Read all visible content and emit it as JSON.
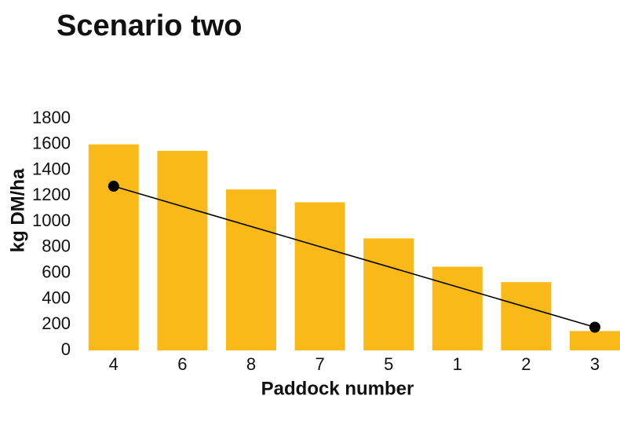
{
  "chart_data": {
    "type": "bar",
    "title": "Scenario two",
    "x_label": "Paddock number",
    "y_label": "kg DM/ha",
    "categories": [
      "4",
      "6",
      "8",
      "7",
      "5",
      "1",
      "2",
      "3"
    ],
    "values": [
      1600,
      1550,
      1250,
      1150,
      870,
      650,
      530,
      150
    ],
    "color": "#f9b918",
    "ylim": [
      0,
      1800
    ],
    "yticks": [
      0,
      200,
      400,
      600,
      800,
      1000,
      1200,
      1400,
      1600,
      1800
    ],
    "grid": false,
    "line": {
      "type": "line",
      "categories": [
        "4",
        "3"
      ],
      "values": [
        1275,
        180
      ],
      "color": "#000000"
    }
  }
}
